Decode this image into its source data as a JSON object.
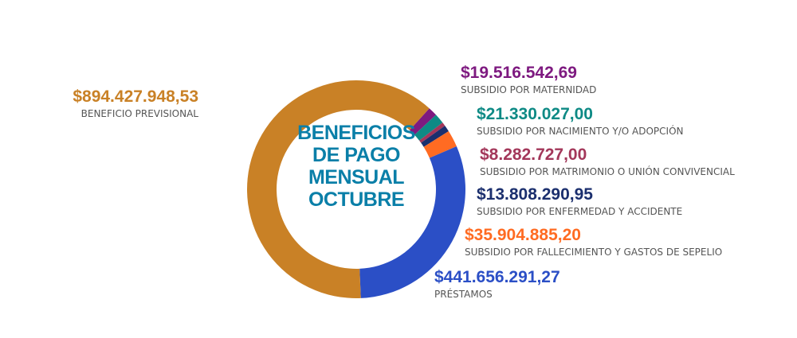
{
  "chart_data": {
    "type": "pie",
    "variant": "donut",
    "title": "BENEFICIOS DE PAGO MENSUAL OCTUBRE",
    "title_lines": [
      "BENEFICIOS",
      "DE PAGO",
      "MENSUAL",
      "OCTUBRE"
    ],
    "slices": [
      {
        "name": "SUBSIDIO POR MATERNIDAD",
        "value": 19516542.69,
        "label": "$19.516.542,69",
        "color": "#7E1A80"
      },
      {
        "name": "SUBSIDIO POR NACIMIENTO Y/O ADOPCIÓN",
        "value": 21330027.0,
        "label": "$21.330.027,00",
        "color": "#0E8A85"
      },
      {
        "name": "SUBSIDIO POR MATRIMONIO O UNIÓN CONVIVENCIAL",
        "value": 8282727.0,
        "label": "$8.282.727,00",
        "color": "#A3375A"
      },
      {
        "name": "SUBSIDIO POR ENFERMEDAD Y ACCIDENTE",
        "value": 13808290.95,
        "label": "$13.808.290,95",
        "color": "#1B2F6E"
      },
      {
        "name": "SUBSIDIO POR FALLECIMIENTO Y GASTOS DE SEPELIO",
        "value": 35904885.2,
        "label": "$35.904.885,20",
        "color": "#FF6B22"
      },
      {
        "name": "PRÉSTAMOS",
        "value": 441656291.27,
        "label": "$441.656.291,27",
        "color": "#2B4FC6"
      },
      {
        "name": "BENEFICIO PREVISIONAL",
        "value": 894427948.53,
        "label": "$894.427.948,53",
        "color": "#C98126"
      }
    ]
  }
}
